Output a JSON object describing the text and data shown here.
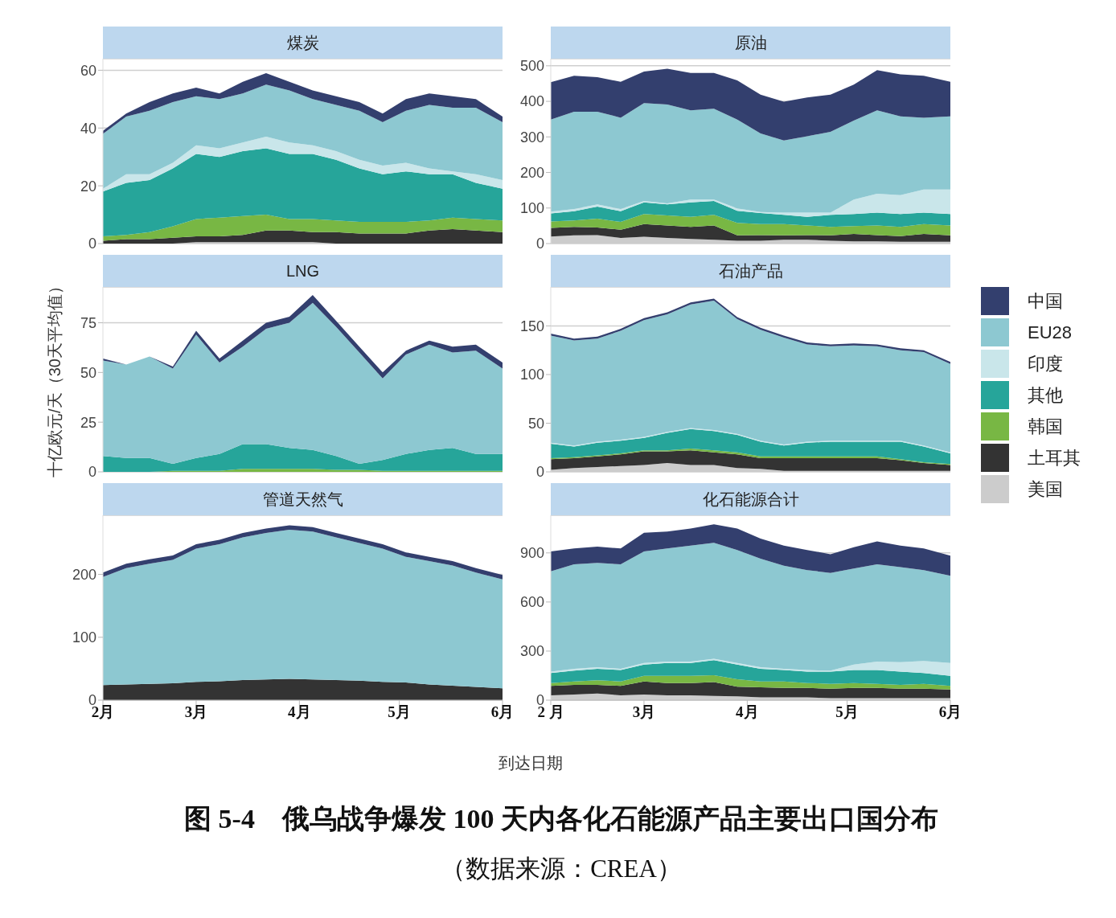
{
  "chart_data": [
    {
      "type": "area",
      "title": "煤炭",
      "stacked": true,
      "grid": "y",
      "tick_labels": "y",
      "legend": "right",
      "x": [
        "--02-01",
        "--02-08",
        "--02-15",
        "--02-22",
        "--03-01",
        "--03-08",
        "--03-15",
        "--03-22",
        "--03-29",
        "--04-05",
        "--04-12",
        "--04-19",
        "--04-26",
        "--05-03",
        "--05-10",
        "--05-17",
        "--05-24",
        "--06-01"
      ],
      "xlim": [
        "--02-01",
        "--06-01"
      ],
      "ylim": [
        0,
        64
      ],
      "yticks": [
        0,
        20,
        40,
        60
      ],
      "series": [
        {
          "name": "美国",
          "color": "#cccccc",
          "values": [
            0,
            0,
            0,
            0,
            0.5,
            0.5,
            0.5,
            0.5,
            0.5,
            0.5,
            0,
            0,
            0,
            0,
            0,
            0,
            0,
            0
          ]
        },
        {
          "name": "土耳其",
          "color": "#333333",
          "values": [
            1,
            1.5,
            1.5,
            2,
            2,
            2,
            2.5,
            4,
            4,
            3.5,
            4,
            3.5,
            3.5,
            3.5,
            4.5,
            5,
            4.5,
            4
          ]
        },
        {
          "name": "韩国",
          "color": "#78b744",
          "values": [
            1.5,
            1.5,
            2.5,
            4,
            6,
            6.5,
            6.5,
            5.5,
            4,
            4.5,
            4,
            4,
            4,
            4,
            3.5,
            4,
            4,
            4
          ]
        },
        {
          "name": "其他",
          "color": "#26a59a",
          "values": [
            15.5,
            18,
            18,
            20,
            22.5,
            21,
            22.5,
            23,
            22.5,
            22.5,
            21,
            18.5,
            16.5,
            17.5,
            16,
            15,
            12.5,
            11
          ]
        },
        {
          "name": "印度",
          "color": "#c9e6ea",
          "values": [
            1,
            3,
            2,
            2,
            3,
            3,
            3,
            4,
            4,
            3,
            3,
            3,
            3,
            3,
            2,
            1,
            3,
            3
          ]
        },
        {
          "name": "EU28",
          "color": "#8dc8d1",
          "values": [
            19,
            20,
            22,
            21,
            17,
            17,
            17,
            18,
            18,
            16,
            16,
            17,
            15,
            18,
            22,
            22,
            23,
            20
          ]
        },
        {
          "name": "中国",
          "color": "#333f6e",
          "values": [
            1,
            1,
            3,
            3,
            3,
            2,
            4,
            4,
            3,
            3,
            3,
            3,
            3,
            4,
            4,
            4,
            3,
            2
          ]
        }
      ]
    },
    {
      "type": "area",
      "title": "原油",
      "stacked": true,
      "grid": "y",
      "tick_labels": "y",
      "x": [
        "--02-01",
        "--02-08",
        "--02-15",
        "--02-22",
        "--03-01",
        "--03-08",
        "--03-15",
        "--03-22",
        "--03-29",
        "--04-05",
        "--04-12",
        "--04-19",
        "--04-26",
        "--05-03",
        "--05-10",
        "--05-17",
        "--05-24",
        "--06-01"
      ],
      "xlim": [
        "--02-01",
        "--06-01"
      ],
      "ylim": [
        0,
        520
      ],
      "yticks": [
        0,
        100,
        200,
        300,
        400,
        500
      ],
      "series": [
        {
          "color": "#cccccc",
          "values": [
            20,
            23,
            24,
            16,
            19,
            16,
            13,
            11,
            8,
            8,
            11,
            11,
            8,
            6,
            6,
            5,
            5,
            5
          ]
        },
        {
          "color": "#333333",
          "values": [
            24,
            24,
            21,
            23,
            36,
            35,
            34,
            40,
            15,
            16,
            12,
            13,
            15,
            21,
            18,
            16,
            22,
            18
          ]
        },
        {
          "color": "#78b744",
          "values": [
            18,
            18,
            25,
            22,
            28,
            28,
            28,
            30,
            35,
            31,
            32,
            27,
            24,
            22,
            27,
            26,
            28,
            28
          ]
        },
        {
          "color": "#26a59a",
          "values": [
            23,
            26,
            34,
            30,
            33,
            31,
            41,
            39,
            34,
            31,
            26,
            24,
            34,
            34,
            36,
            36,
            32,
            32
          ]
        },
        {
          "color": "#c9e6ea",
          "values": [
            5,
            6,
            6,
            6,
            4,
            3,
            8,
            4,
            7,
            3,
            6,
            12,
            6,
            41,
            53,
            53,
            65,
            69
          ]
        },
        {
          "color": "#8dc8d1",
          "values": [
            259,
            274,
            261,
            257,
            275,
            278,
            251,
            255,
            250,
            221,
            203,
            215,
            227,
            222,
            235,
            222,
            202,
            206
          ]
        },
        {
          "color": "#333f6e",
          "values": [
            105,
            101,
            97,
            101,
            89,
            101,
            105,
            101,
            110,
            109,
            109,
            109,
            105,
            101,
            113,
            118,
            118,
            97
          ]
        }
      ]
    },
    {
      "type": "area",
      "title": "LNG",
      "ylabel": "十亿欧元/天（30天平均值）",
      "stacked": true,
      "grid": "y",
      "tick_labels": "y",
      "x": [
        "--02-01",
        "--02-08",
        "--02-15",
        "--02-22",
        "--03-01",
        "--03-08",
        "--03-15",
        "--03-22",
        "--03-29",
        "--04-05",
        "--04-12",
        "--04-19",
        "--04-26",
        "--05-03",
        "--05-10",
        "--05-17",
        "--05-24",
        "--06-01"
      ],
      "xlim": [
        "--02-01",
        "--06-01"
      ],
      "ylim": [
        0,
        93
      ],
      "yticks": [
        0,
        25,
        50,
        75
      ],
      "series": [
        {
          "color": "#78b744",
          "values": [
            0,
            0,
            0,
            0.5,
            0.5,
            0.5,
            1.5,
            1.5,
            1.5,
            1.5,
            1,
            1,
            0.5,
            0.5,
            0.5,
            0.5,
            0.5,
            0.5
          ]
        },
        {
          "color": "#26a59a",
          "values": [
            8,
            7,
            7,
            3.5,
            6.5,
            8.5,
            12.5,
            12.5,
            10.5,
            9.5,
            7,
            3,
            5.5,
            8.5,
            10.5,
            11.5,
            8.5,
            8.5
          ]
        },
        {
          "color": "#8dc8d1",
          "values": [
            48,
            47,
            51,
            48,
            62,
            46,
            49,
            58,
            63,
            74,
            65,
            56,
            41,
            50,
            53,
            48,
            52,
            43
          ]
        },
        {
          "color": "#333f6e",
          "values": [
            1,
            0,
            0,
            1,
            2,
            2,
            3,
            3,
            3,
            4,
            3,
            3,
            3,
            2,
            2,
            3,
            3,
            3
          ]
        }
      ]
    },
    {
      "type": "area",
      "title": "石油产品",
      "stacked": true,
      "grid": "y",
      "tick_labels": "y",
      "x": [
        "--02-01",
        "--02-08",
        "--02-15",
        "--02-22",
        "--03-01",
        "--03-08",
        "--03-15",
        "--03-22",
        "--03-29",
        "--04-05",
        "--04-12",
        "--04-19",
        "--04-26",
        "--05-03",
        "--05-10",
        "--05-17",
        "--05-24",
        "--06-01"
      ],
      "xlim": [
        "--02-01",
        "--06-01"
      ],
      "ylim": [
        0,
        190
      ],
      "yticks": [
        0,
        50,
        100,
        150
      ],
      "series": [
        {
          "color": "#cccccc",
          "values": [
            2,
            4,
            5,
            6,
            7,
            9,
            7,
            7,
            4,
            3,
            1,
            1,
            1,
            1,
            1,
            1,
            1,
            1
          ]
        },
        {
          "color": "#333333",
          "values": [
            11,
            10,
            11,
            12,
            14,
            12,
            15,
            13,
            14,
            11,
            13,
            13,
            13,
            13,
            13,
            11,
            8,
            6
          ]
        },
        {
          "color": "#78b744",
          "values": [
            1,
            1,
            1,
            1,
            1,
            1,
            2,
            2,
            2,
            2,
            2,
            2,
            2,
            2,
            2,
            1,
            1,
            1
          ]
        },
        {
          "color": "#26a59a",
          "values": [
            15,
            11,
            13,
            13,
            13,
            18,
            20,
            20,
            18,
            15,
            11,
            14,
            15,
            15,
            15,
            18,
            16,
            11
          ]
        },
        {
          "color": "#c9e6ea",
          "values": [
            1,
            1,
            1,
            1,
            1,
            1,
            1,
            1,
            1,
            1,
            1,
            1,
            1,
            1,
            1,
            1,
            1,
            1
          ]
        },
        {
          "color": "#8dc8d1",
          "values": [
            110,
            108,
            106,
            112,
            120,
            121,
            127,
            133,
            118,
            114,
            110,
            100,
            97,
            98,
            97,
            93,
            96,
            91
          ]
        },
        {
          "color": "#333f6e",
          "values": [
            2,
            2,
            2,
            2,
            2,
            2,
            2,
            2,
            2,
            2,
            2,
            2,
            2,
            2,
            2,
            2,
            2,
            2
          ]
        }
      ]
    },
    {
      "type": "area",
      "title": "管道天然气",
      "xlabel": "到达日期",
      "stacked": true,
      "grid": "y",
      "x": [
        "--02-01",
        "--02-08",
        "--02-15",
        "--02-22",
        "--03-01",
        "--03-08",
        "--03-15",
        "--03-22",
        "--03-29",
        "--04-05",
        "--04-12",
        "--04-19",
        "--04-26",
        "--05-03",
        "--05-10",
        "--05-17",
        "--05-24",
        "--06-01"
      ],
      "xlim": [
        "--02-01",
        "--06-01"
      ],
      "xticks": [
        {
          "value": "--02-01",
          "label": "2月"
        },
        {
          "value": "--03-01",
          "label": "3月"
        },
        {
          "value": "--04-01",
          "label": "4月"
        },
        {
          "value": "--05-01",
          "label": "5月"
        },
        {
          "value": "--06-01",
          "label": "6月"
        }
      ],
      "ylim": [
        0,
        294
      ],
      "yticks": [
        0,
        100,
        200
      ],
      "series": [
        {
          "color": "#333333",
          "values": [
            24,
            25,
            26,
            27,
            29,
            30,
            32,
            33,
            34,
            33,
            32,
            31,
            29,
            28,
            25,
            23,
            21,
            19
          ]
        },
        {
          "color": "#8dc8d1",
          "values": [
            172,
            185,
            191,
            196,
            212,
            218,
            227,
            233,
            237,
            235,
            227,
            219,
            212,
            200,
            196,
            191,
            182,
            173
          ]
        },
        {
          "color": "#333f6e",
          "values": [
            7,
            7,
            7,
            7,
            7,
            7,
            7,
            7,
            7,
            7,
            7,
            7,
            7,
            7,
            7,
            7,
            7,
            7
          ]
        }
      ]
    },
    {
      "type": "area",
      "title": "化石能源合计",
      "stacked": true,
      "grid": "y",
      "annotations": [
        "图 5-4　俄乌战争爆发 100 天内各化石能源产品主要出口国分布",
        "（数据来源：CREA）"
      ],
      "x": [
        "--02-01",
        "--02-08",
        "--02-15",
        "--02-22",
        "--03-01",
        "--03-08",
        "--03-15",
        "--03-22",
        "--03-29",
        "--04-05",
        "--04-12",
        "--04-19",
        "--04-26",
        "--05-03",
        "--05-10",
        "--05-17",
        "--05-24",
        "--06-01"
      ],
      "xlim": [
        "--02-01",
        "--06-01"
      ],
      "xticks": [
        {
          "value": "--02-01",
          "label": "2 月"
        },
        {
          "value": "--03-01",
          "label": "3月"
        },
        {
          "value": "--04-01",
          "label": "4月"
        },
        {
          "value": "--05-01",
          "label": "5月"
        },
        {
          "value": "--06-01",
          "label": "6月"
        }
      ],
      "ylim": [
        0,
        1130
      ],
      "yticks": [
        0,
        300,
        600,
        900
      ],
      "series": [
        {
          "color": "#cccccc",
          "values": [
            30,
            35,
            40,
            30,
            35,
            30,
            30,
            26,
            23,
            17,
            17,
            17,
            12,
            12,
            12,
            12,
            12,
            12
          ]
        },
        {
          "color": "#333333",
          "values": [
            57,
            58,
            53,
            57,
            79,
            75,
            75,
            84,
            59,
            62,
            58,
            58,
            58,
            63,
            63,
            58,
            58,
            53
          ]
        },
        {
          "color": "#78b744",
          "values": [
            18,
            21,
            29,
            27,
            35,
            44,
            44,
            42,
            46,
            35,
            39,
            30,
            30,
            30,
            25,
            23,
            30,
            22
          ]
        },
        {
          "color": "#26a59a",
          "values": [
            61,
            66,
            70,
            70,
            69,
            78,
            78,
            93,
            90,
            78,
            70,
            70,
            75,
            79,
            84,
            82,
            66,
            62
          ]
        },
        {
          "color": "#c9e6ea",
          "values": [
            9,
            12,
            9,
            8,
            9,
            9,
            9,
            8,
            9,
            9,
            8,
            9,
            5,
            34,
            52,
            57,
            73,
            78
          ]
        },
        {
          "color": "#8dc8d1",
          "values": [
            612,
            638,
            638,
            638,
            682,
            691,
            708,
            709,
            691,
            664,
            630,
            611,
            598,
            586,
            594,
            581,
            556,
            533
          ]
        },
        {
          "color": "#333f6e",
          "values": [
            122,
            97,
            100,
            97,
            114,
            104,
            105,
            113,
            131,
            123,
            122,
            123,
            114,
            131,
            140,
            131,
            132,
            123
          ]
        }
      ]
    }
  ]
}
